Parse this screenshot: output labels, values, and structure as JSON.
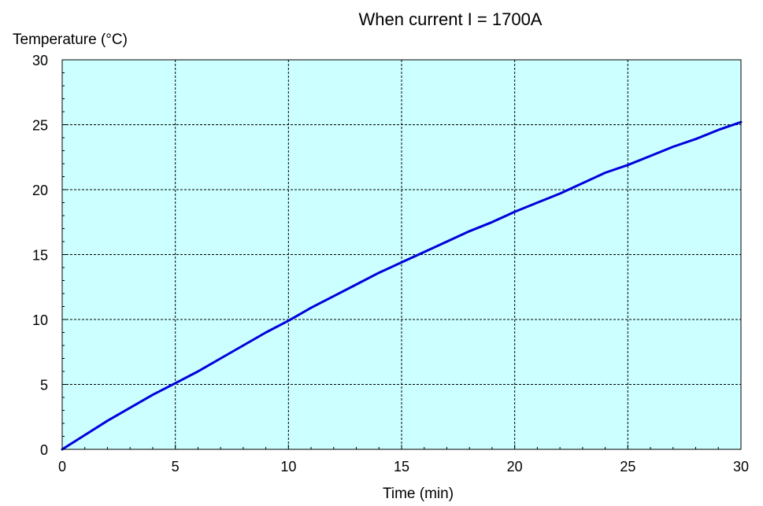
{
  "chart_data": {
    "type": "line",
    "title": "When current  I = 1700A",
    "xlabel": "Time (min)",
    "ylabel": "Temperature (°C)",
    "xlim": [
      0,
      30
    ],
    "ylim": [
      0,
      30
    ],
    "xticks": [
      0,
      5,
      10,
      15,
      20,
      25,
      30
    ],
    "yticks": [
      0,
      5,
      10,
      15,
      20,
      25,
      30
    ],
    "grid": true,
    "grid_style": "dashed",
    "plot_background": "#ccffff",
    "series": [
      {
        "color": "#0000dd",
        "x": [
          0,
          1,
          2,
          3,
          4,
          5,
          6,
          7,
          8,
          9,
          10,
          11,
          12,
          13,
          14,
          15,
          16,
          17,
          18,
          19,
          20,
          21,
          22,
          23,
          24,
          25,
          26,
          27,
          28,
          29,
          30
        ],
        "y": [
          0,
          1.1,
          2.2,
          3.2,
          4.2,
          5.1,
          6.0,
          7.0,
          8.0,
          9.0,
          9.9,
          10.9,
          11.8,
          12.7,
          13.6,
          14.4,
          15.2,
          16.0,
          16.8,
          17.5,
          18.3,
          19.0,
          19.7,
          20.5,
          21.3,
          21.9,
          22.6,
          23.3,
          23.9,
          24.6,
          25.2
        ]
      }
    ]
  }
}
